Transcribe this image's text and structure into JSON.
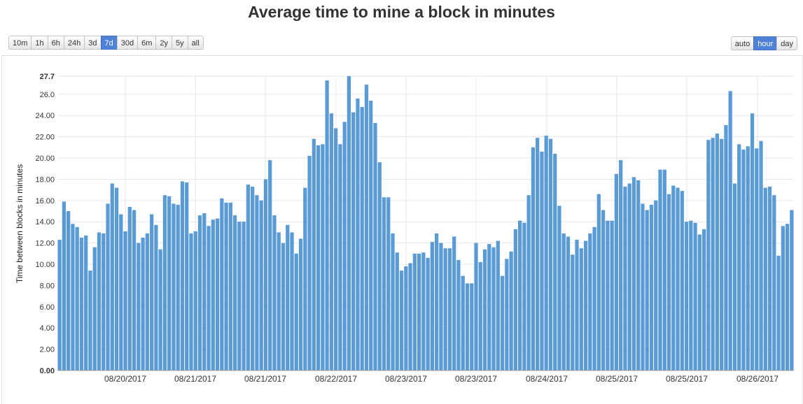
{
  "chart_data": {
    "type": "bar",
    "title": "Average time to mine a block in minutes",
    "ylabel": "Time between blocks in minutes",
    "ylim": [
      0,
      27.7
    ],
    "yticks": [
      "0.00",
      "2.00",
      "4.00",
      "6.00",
      "8.00",
      "10.00",
      "12.00",
      "14.00",
      "16.00",
      "18.00",
      "20.00",
      "22.00",
      "24.00",
      "26.0",
      "27.7"
    ],
    "xticks": [
      "08/20/2017",
      "08/21/2017",
      "08/21/2017",
      "08/22/2017",
      "08/23/2017",
      "08/23/2017",
      "08/24/2017",
      "08/25/2017",
      "08/25/2017",
      "08/26/2017"
    ],
    "grid": true,
    "color": "#5b9bd5",
    "values": [
      12.3,
      15.9,
      15.0,
      13.8,
      13.5,
      12.5,
      12.7,
      9.4,
      11.6,
      13.0,
      12.9,
      15.7,
      17.6,
      17.2,
      14.7,
      13.1,
      15.4,
      15.1,
      12.0,
      12.5,
      12.9,
      14.7,
      13.7,
      11.4,
      16.5,
      16.4,
      15.7,
      15.6,
      17.8,
      17.7,
      12.9,
      13.1,
      14.6,
      14.8,
      13.6,
      14.2,
      14.3,
      16.2,
      15.8,
      15.8,
      14.6,
      14.0,
      14.0,
      17.5,
      17.3,
      16.5,
      16.0,
      18.0,
      19.8,
      14.6,
      13.0,
      12.0,
      13.7,
      13.0,
      11.0,
      12.4,
      17.2,
      20.2,
      21.8,
      21.2,
      21.3,
      27.3,
      24.2,
      22.8,
      21.3,
      23.4,
      27.7,
      24.3,
      25.6,
      24.8,
      26.9,
      25.4,
      23.3,
      19.6,
      16.3,
      16.3,
      12.9,
      11.1,
      9.4,
      9.8,
      10.1,
      11.0,
      11.0,
      11.1,
      10.6,
      12.1,
      12.9,
      12.0,
      11.5,
      11.5,
      12.6,
      10.4,
      8.9,
      8.2,
      8.2,
      12.0,
      10.2,
      11.4,
      11.9,
      11.6,
      12.2,
      8.9,
      10.5,
      11.2,
      13.3,
      14.1,
      13.9,
      16.5,
      21.0,
      21.9,
      20.6,
      22.1,
      21.8,
      20.4,
      15.5,
      12.9,
      12.6,
      10.9,
      12.3,
      11.5,
      12.2,
      12.9,
      13.5,
      16.6,
      15.1,
      14.1,
      14.1,
      18.5,
      19.8,
      17.3,
      17.6,
      18.2,
      17.9,
      15.7,
      15.1,
      15.6,
      16.0,
      18.9,
      18.9,
      16.6,
      17.4,
      17.2,
      16.9,
      14.0,
      14.1,
      13.9,
      12.8,
      13.3,
      21.7,
      21.9,
      22.3,
      21.8,
      23.1,
      26.3,
      17.6,
      21.3,
      20.8,
      21.1,
      24.2,
      20.9,
      21.6,
      17.2,
      17.3,
      16.5,
      10.8,
      13.6,
      13.8,
      15.1
    ]
  },
  "range_buttons": [
    "10m",
    "1h",
    "6h",
    "24h",
    "3d",
    "7d",
    "30d",
    "6m",
    "2y",
    "5y",
    "all"
  ],
  "range_active": "7d",
  "agg_buttons": [
    "auto",
    "hour",
    "day"
  ],
  "agg_active": "hour"
}
